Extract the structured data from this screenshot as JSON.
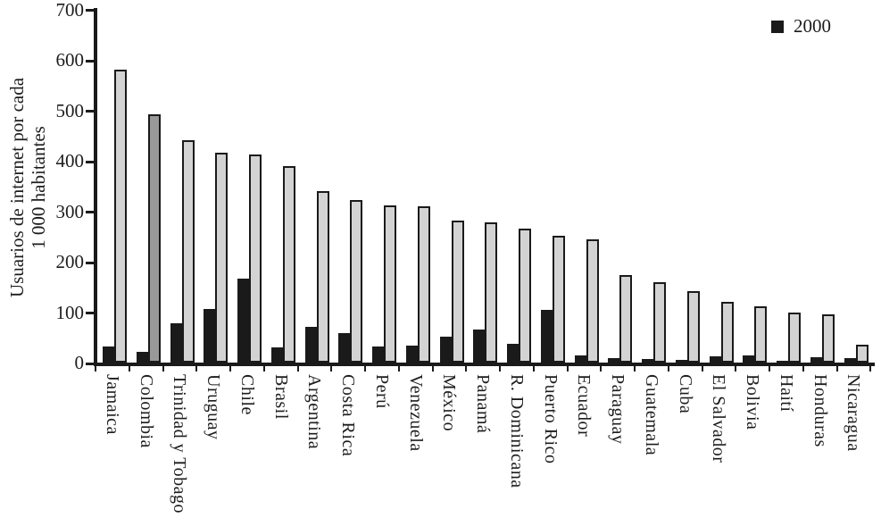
{
  "legend": {
    "items": [
      {
        "label": "2000",
        "swatch_color": "#1a1a1a"
      }
    ]
  },
  "y_axis": {
    "label_line1": "Usuarios de internet por cada",
    "label_line2": "1 000 habitantes",
    "ticks": [
      "0",
      "100",
      "200",
      "300",
      "400",
      "500",
      "600",
      "700"
    ]
  },
  "chart_data": {
    "type": "bar",
    "title": "",
    "xlabel": "",
    "ylabel": "Usuarios de internet por cada 1 000 habitantes",
    "ylim": [
      0,
      700
    ],
    "grid": false,
    "legend_position": "top-right",
    "categories": [
      "Jamaica",
      "Colombia",
      "Trinidad y Tobago",
      "Uruguay",
      "Chile",
      "Brasil",
      "Argentina",
      "Costa Rica",
      "Perú",
      "Venezuela",
      "México",
      "Panamá",
      "R. Dominicana",
      "Puerto Rico",
      "Ecuador",
      "Paraguay",
      "Guatemala",
      "Cuba",
      "El Salvador",
      "Bolivia",
      "Haití",
      "Honduras",
      "Nicaragua"
    ],
    "series": [
      {
        "name": "2000",
        "color": "#1a1a1a",
        "values": [
          32,
          22,
          78,
          106,
          166,
          30,
          70,
          58,
          32,
          34,
          51,
          66,
          38,
          104,
          15,
          8,
          7,
          5,
          13,
          15,
          4,
          11,
          8
        ]
      },
      {
        "name": "",
        "color": "#d3d3d3",
        "values": [
          580,
          492,
          441,
          416,
          412,
          390,
          340,
          322,
          312,
          310,
          281,
          277,
          266,
          252,
          244,
          174,
          160,
          142,
          120,
          112,
          100,
          96,
          36
        ],
        "color_overrides": {
          "1": "#999999"
        }
      }
    ]
  },
  "colors": {
    "ink": "#1a1a1a",
    "background": "#ffffff",
    "bar_series1": "#1a1a1a",
    "bar_series2": "#d3d3d3",
    "bar_series2_colombia": "#999999"
  }
}
